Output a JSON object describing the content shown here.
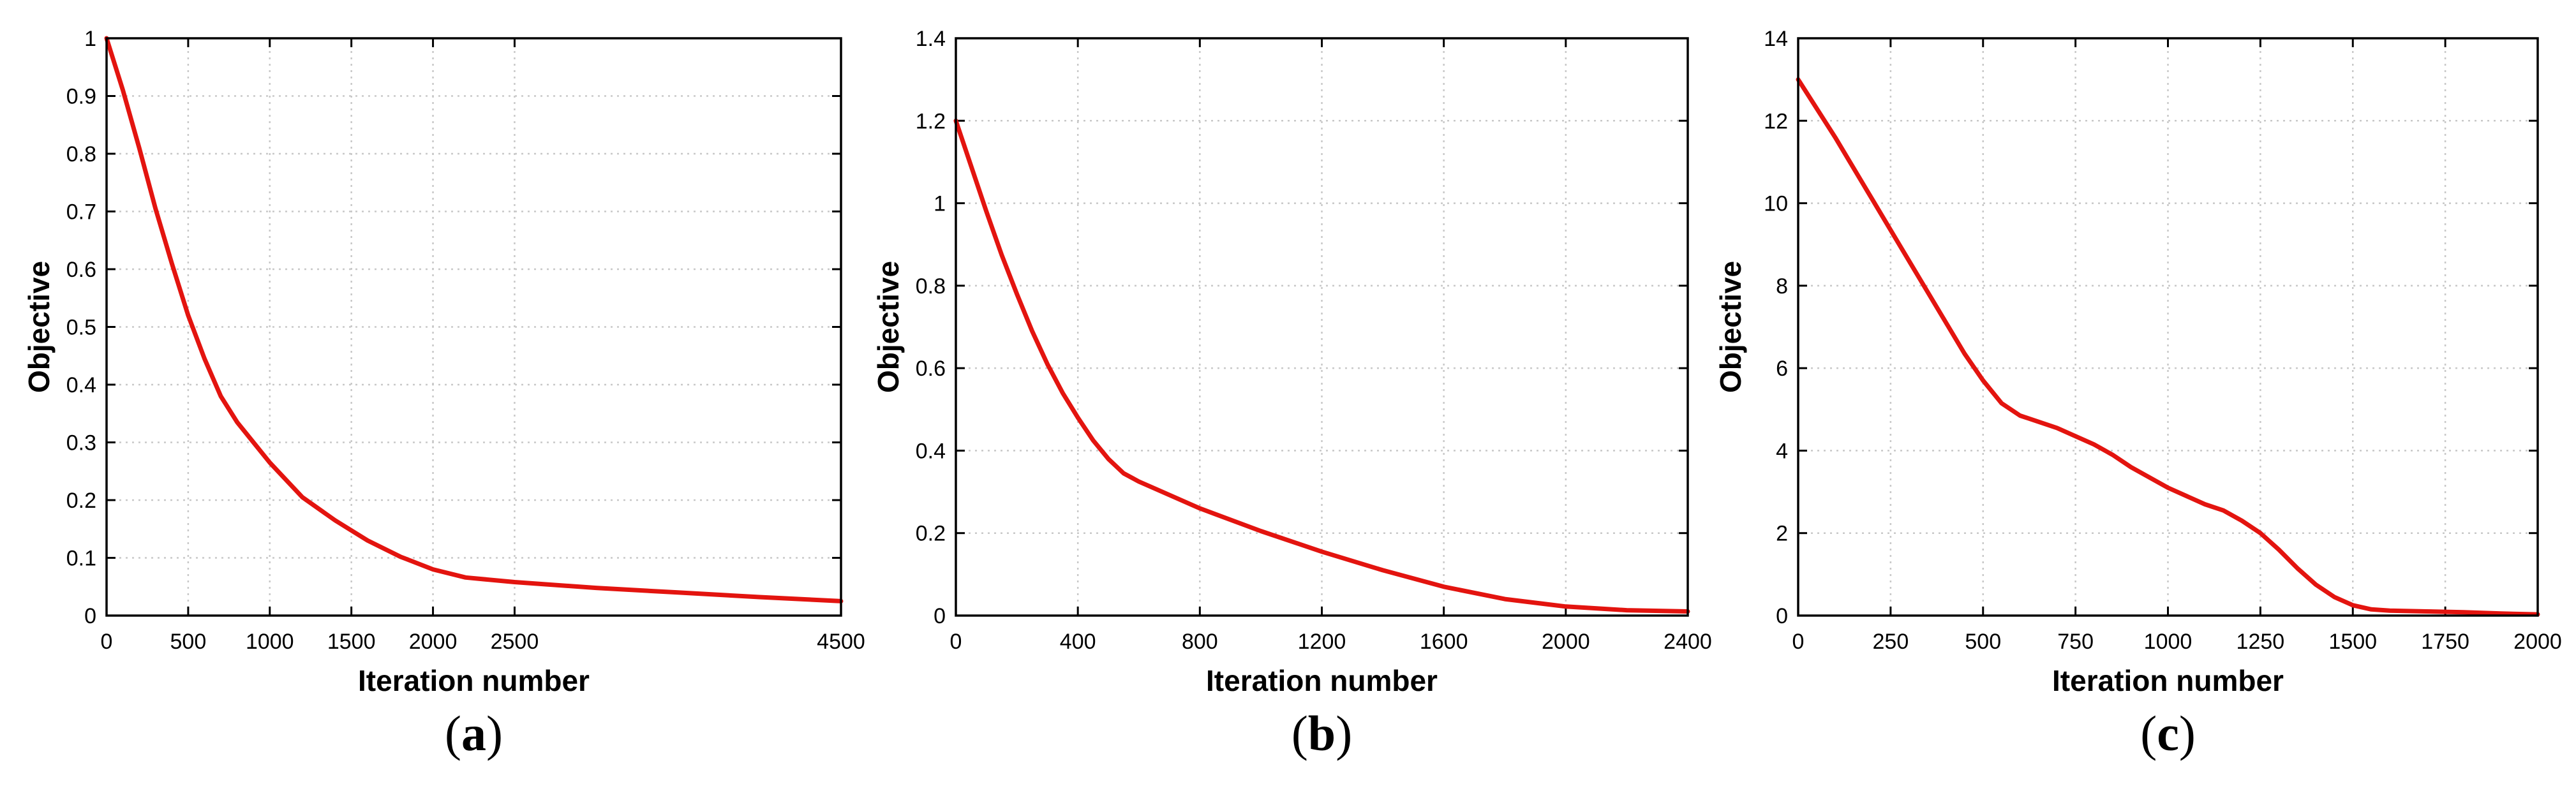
{
  "chart_data": [
    {
      "type": "line",
      "panel_label": "a",
      "xlabel": "Iteration number",
      "ylabel": "Objective",
      "xlim": [
        0,
        4500
      ],
      "ylim": [
        0,
        1
      ],
      "xticks": [
        0,
        500,
        1000,
        1500,
        2000,
        2500,
        4500
      ],
      "xtick_labels": [
        "0",
        "500",
        "1000",
        "1500",
        "2000",
        "2500",
        "4500"
      ],
      "yticks": [
        0,
        0.1,
        0.2,
        0.3,
        0.4,
        0.5,
        0.6,
        0.7,
        0.8,
        0.9,
        1
      ],
      "ytick_labels": [
        "0",
        "0.1",
        "0.2",
        "0.3",
        "0.4",
        "0.5",
        "0.6",
        "0.7",
        "0.8",
        "0.9",
        "1"
      ],
      "grid": true,
      "series": [
        {
          "color": "#e3140f",
          "x": [
            0,
            100,
            200,
            300,
            400,
            500,
            600,
            700,
            800,
            900,
            1000,
            1200,
            1400,
            1600,
            1800,
            2000,
            2200,
            2500,
            3000,
            3500,
            4000,
            4500
          ],
          "y": [
            1.0,
            0.91,
            0.81,
            0.705,
            0.61,
            0.52,
            0.445,
            0.38,
            0.335,
            0.3,
            0.265,
            0.205,
            0.165,
            0.13,
            0.102,
            0.08,
            0.066,
            0.058,
            0.048,
            0.04,
            0.032,
            0.025
          ]
        }
      ]
    },
    {
      "type": "line",
      "panel_label": "b",
      "xlabel": "Iteration number",
      "ylabel": "Objective",
      "xlim": [
        0,
        2400
      ],
      "ylim": [
        0,
        1.4
      ],
      "xticks": [
        0,
        400,
        800,
        1200,
        1600,
        2000,
        2400
      ],
      "xtick_labels": [
        "0",
        "400",
        "800",
        "1200",
        "1600",
        "2000",
        "2400"
      ],
      "yticks": [
        0,
        0.2,
        0.4,
        0.6,
        0.8,
        1,
        1.2,
        1.4
      ],
      "ytick_labels": [
        "0",
        "0.2",
        "0.4",
        "0.6",
        "0.8",
        "1",
        "1.2",
        "1.4"
      ],
      "grid": true,
      "series": [
        {
          "color": "#e3140f",
          "x": [
            0,
            50,
            100,
            150,
            200,
            250,
            300,
            350,
            400,
            450,
            500,
            550,
            600,
            800,
            1000,
            1200,
            1400,
            1600,
            1800,
            2000,
            2200,
            2400
          ],
          "y": [
            1.2,
            1.09,
            0.98,
            0.875,
            0.78,
            0.69,
            0.61,
            0.54,
            0.48,
            0.425,
            0.38,
            0.345,
            0.325,
            0.26,
            0.205,
            0.155,
            0.11,
            0.07,
            0.04,
            0.022,
            0.013,
            0.01
          ]
        }
      ]
    },
    {
      "type": "line",
      "panel_label": "c",
      "xlabel": "Iteration number",
      "ylabel": "Objective",
      "xlim": [
        0,
        2000
      ],
      "ylim": [
        0,
        14
      ],
      "xticks": [
        0,
        250,
        500,
        750,
        1000,
        1250,
        1500,
        1750,
        2000
      ],
      "xtick_labels": [
        "0",
        "250",
        "500",
        "750",
        "1000",
        "1250",
        "1500",
        "1750",
        "2000"
      ],
      "yticks": [
        0,
        2,
        4,
        6,
        8,
        10,
        12,
        14
      ],
      "ytick_labels": [
        "0",
        "2",
        "4",
        "6",
        "8",
        "10",
        "12",
        "14"
      ],
      "grid": true,
      "series": [
        {
          "color": "#e3140f",
          "x": [
            0,
            100,
            200,
            300,
            400,
            450,
            500,
            550,
            600,
            650,
            700,
            750,
            800,
            850,
            900,
            1000,
            1100,
            1150,
            1200,
            1250,
            1300,
            1350,
            1400,
            1450,
            1500,
            1550,
            1600,
            1700,
            1800,
            1900,
            2000
          ],
          "y": [
            13.0,
            11.6,
            10.1,
            8.6,
            7.1,
            6.35,
            5.7,
            5.15,
            4.85,
            4.7,
            4.55,
            4.35,
            4.15,
            3.9,
            3.6,
            3.1,
            2.7,
            2.55,
            2.3,
            2.0,
            1.6,
            1.15,
            0.75,
            0.45,
            0.25,
            0.15,
            0.12,
            0.1,
            0.08,
            0.05,
            0.03
          ]
        }
      ]
    }
  ]
}
